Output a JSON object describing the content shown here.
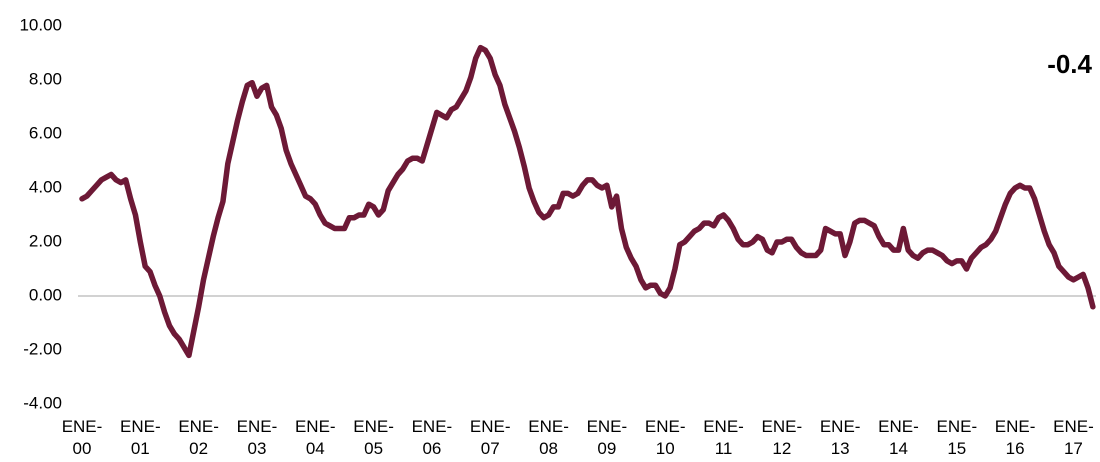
{
  "chart_data": {
    "type": "line",
    "annotation": "-0.4",
    "color": "#6d1936",
    "grid": false,
    "ylim": [
      -4,
      10
    ],
    "yticks": [
      {
        "value": -4,
        "label": "-4.00"
      },
      {
        "value": -2,
        "label": "-2.00"
      },
      {
        "value": 0,
        "label": "0.00"
      },
      {
        "value": 2,
        "label": "2.00"
      },
      {
        "value": 4,
        "label": "4.00"
      },
      {
        "value": 6,
        "label": "6.00"
      },
      {
        "value": 8,
        "label": "8.00"
      },
      {
        "value": 10,
        "label": "10.00"
      }
    ],
    "categories": [
      "ENE-\n00",
      null,
      null,
      null,
      null,
      null,
      null,
      null,
      null,
      null,
      null,
      null,
      "ENE-\n01",
      null,
      null,
      null,
      null,
      null,
      null,
      null,
      null,
      null,
      null,
      null,
      "ENE-\n02",
      null,
      null,
      null,
      null,
      null,
      null,
      null,
      null,
      null,
      null,
      null,
      "ENE-\n03",
      null,
      null,
      null,
      null,
      null,
      null,
      null,
      null,
      null,
      null,
      null,
      "ENE-\n04",
      null,
      null,
      null,
      null,
      null,
      null,
      null,
      null,
      null,
      null,
      null,
      "ENE-\n05",
      null,
      null,
      null,
      null,
      null,
      null,
      null,
      null,
      null,
      null,
      null,
      "ENE-\n06",
      null,
      null,
      null,
      null,
      null,
      null,
      null,
      null,
      null,
      null,
      null,
      "ENE-\n07",
      null,
      null,
      null,
      null,
      null,
      null,
      null,
      null,
      null,
      null,
      null,
      "ENE-\n08",
      null,
      null,
      null,
      null,
      null,
      null,
      null,
      null,
      null,
      null,
      null,
      "ENE-\n09",
      null,
      null,
      null,
      null,
      null,
      null,
      null,
      null,
      null,
      null,
      null,
      "ENE-\n10",
      null,
      null,
      null,
      null,
      null,
      null,
      null,
      null,
      null,
      null,
      null,
      "ENE-\n11",
      null,
      null,
      null,
      null,
      null,
      null,
      null,
      null,
      null,
      null,
      null,
      "ENE-\n12",
      null,
      null,
      null,
      null,
      null,
      null,
      null,
      null,
      null,
      null,
      null,
      "ENE-\n13",
      null,
      null,
      null,
      null,
      null,
      null,
      null,
      null,
      null,
      null,
      null,
      "ENE-\n14",
      null,
      null,
      null,
      null,
      null,
      null,
      null,
      null,
      null,
      null,
      null,
      "ENE-\n15",
      null,
      null,
      null,
      null,
      null,
      null,
      null,
      null,
      null,
      null,
      null,
      "ENE-\n16",
      null,
      null,
      null,
      null,
      null,
      null,
      null,
      null,
      null,
      null,
      null,
      "ENE-\n17",
      null,
      null,
      null,
      null
    ],
    "values": [
      3.6,
      3.7,
      3.9,
      4.1,
      4.3,
      4.4,
      4.5,
      4.3,
      4.2,
      4.3,
      3.6,
      3.0,
      2.0,
      1.1,
      0.9,
      0.4,
      0.0,
      -0.6,
      -1.1,
      -1.4,
      -1.6,
      -1.9,
      -2.2,
      -1.3,
      -0.4,
      0.6,
      1.4,
      2.2,
      2.9,
      3.5,
      4.9,
      5.7,
      6.5,
      7.2,
      7.8,
      7.9,
      7.4,
      7.7,
      7.8,
      7.0,
      6.7,
      6.2,
      5.4,
      4.9,
      4.5,
      4.1,
      3.7,
      3.6,
      3.4,
      3.0,
      2.7,
      2.6,
      2.5,
      2.5,
      2.5,
      2.9,
      2.9,
      3.0,
      3.0,
      3.4,
      3.3,
      3.0,
      3.2,
      3.9,
      4.2,
      4.5,
      4.7,
      5.0,
      5.1,
      5.1,
      5.0,
      5.6,
      6.2,
      6.8,
      6.7,
      6.6,
      6.9,
      7.0,
      7.3,
      7.6,
      8.1,
      8.8,
      9.2,
      9.1,
      8.8,
      8.2,
      7.8,
      7.1,
      6.6,
      6.1,
      5.5,
      4.8,
      4.0,
      3.5,
      3.1,
      2.9,
      3.0,
      3.3,
      3.3,
      3.8,
      3.8,
      3.7,
      3.8,
      4.1,
      4.3,
      4.3,
      4.1,
      4.0,
      4.1,
      3.3,
      3.7,
      2.5,
      1.8,
      1.4,
      1.1,
      0.6,
      0.3,
      0.4,
      0.4,
      0.1,
      0.0,
      0.3,
      1.0,
      1.9,
      2.0,
      2.2,
      2.4,
      2.5,
      2.7,
      2.7,
      2.6,
      2.9,
      3.0,
      2.8,
      2.5,
      2.1,
      1.9,
      1.9,
      2.0,
      2.2,
      2.1,
      1.7,
      1.6,
      2.0,
      2.0,
      2.1,
      2.1,
      1.8,
      1.6,
      1.5,
      1.5,
      1.5,
      1.7,
      2.5,
      2.4,
      2.3,
      2.3,
      1.5,
      2.0,
      2.7,
      2.8,
      2.8,
      2.7,
      2.6,
      2.2,
      1.9,
      1.9,
      1.7,
      1.7,
      2.5,
      1.7,
      1.5,
      1.4,
      1.6,
      1.7,
      1.7,
      1.6,
      1.5,
      1.3,
      1.2,
      1.3,
      1.3,
      1.0,
      1.4,
      1.6,
      1.8,
      1.9,
      2.1,
      2.4,
      2.9,
      3.4,
      3.8,
      4.0,
      4.1,
      4.0,
      4.0,
      3.6,
      3.0,
      2.4,
      1.9,
      1.6,
      1.1,
      0.9,
      0.7,
      0.6,
      0.7,
      0.8,
      0.3,
      -0.4
    ]
  }
}
